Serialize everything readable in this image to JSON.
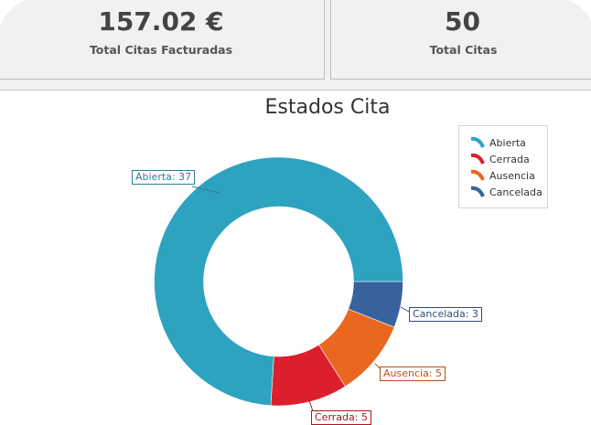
{
  "cards": [
    {
      "value": "157.02 €",
      "label": "Total Citas Facturadas"
    },
    {
      "value": "50",
      "label": "Total Citas"
    }
  ],
  "chart_title": "Estados Cita",
  "legend": [
    {
      "label": "Abierta",
      "color": "#2ea3c0"
    },
    {
      "label": "Cerrada",
      "color": "#dc1f2c"
    },
    {
      "label": "Ausencia",
      "color": "#e9671e"
    },
    {
      "label": "Cancelada",
      "color": "#38629e"
    }
  ],
  "data_labels": {
    "abierta": "Abierta: 37",
    "cerrada": "Cerrada: 5",
    "ausencia": "Ausencia: 5",
    "cancelada": "Cancelada: 3"
  },
  "chart_data": {
    "type": "pie",
    "subtype": "donut",
    "title": "Estados Cita",
    "categories": [
      "Abierta",
      "Cerrada",
      "Ausencia",
      "Cancelada"
    ],
    "values": [
      37,
      5,
      5,
      3
    ],
    "colors": [
      "#2ea3c0",
      "#dc1f2c",
      "#e9671e",
      "#38629e"
    ],
    "total": 50,
    "legend_position": "top-right"
  }
}
